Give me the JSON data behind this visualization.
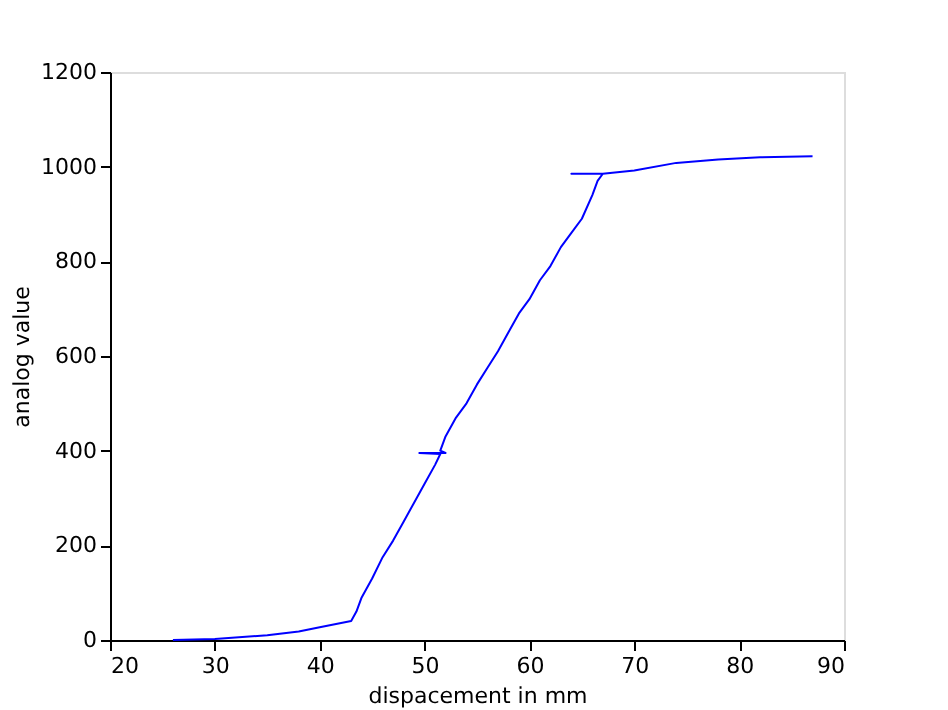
{
  "chart_data": {
    "type": "line",
    "xlabel": "dispacement in mm",
    "ylabel": "analog value",
    "xlim": [
      20,
      90
    ],
    "xticks": [
      20,
      30,
      40,
      50,
      60,
      70,
      80,
      90
    ],
    "ylim": [
      0,
      1200
    ],
    "yticks": [
      0,
      200,
      400,
      600,
      800,
      1000,
      1200
    ],
    "grid": false,
    "marker": "none",
    "line_style": "solid",
    "series": [
      {
        "color": "#0000ff",
        "x": [
          26,
          30,
          35,
          38,
          40,
          43,
          43.5,
          44,
          45,
          46,
          47,
          48,
          49,
          50,
          51,
          51.5,
          49.5,
          52,
          51.5,
          52,
          53,
          54,
          55,
          56,
          57,
          58,
          59,
          60,
          61,
          62,
          63,
          64,
          65,
          66,
          66.5,
          67,
          64,
          67,
          70,
          74,
          78,
          82,
          87
        ],
        "values": [
          0,
          2,
          10,
          18,
          27,
          40,
          60,
          90,
          130,
          175,
          210,
          250,
          290,
          330,
          370,
          393,
          395,
          395,
          400,
          430,
          470,
          500,
          540,
          575,
          610,
          650,
          690,
          720,
          760,
          790,
          830,
          860,
          890,
          940,
          970,
          985,
          985,
          985,
          992,
          1008,
          1015,
          1020,
          1022
        ]
      }
    ]
  }
}
